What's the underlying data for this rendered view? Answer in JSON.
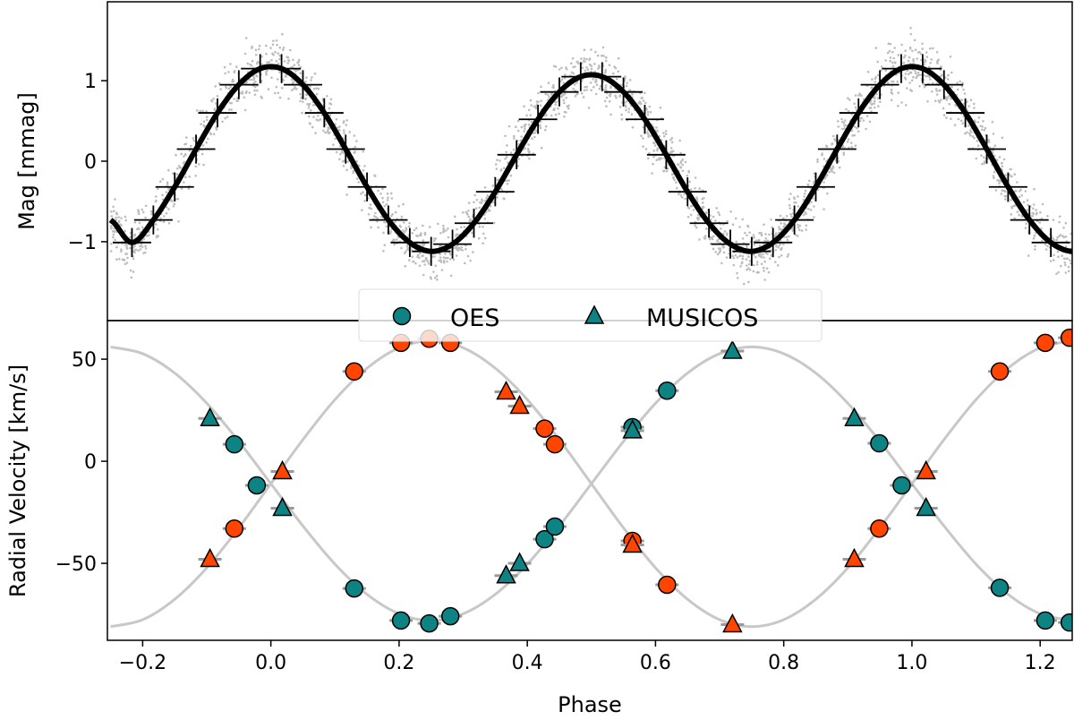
{
  "chart_data": [
    {
      "type": "scatter",
      "panel": "top",
      "xlabel": "",
      "ylabel": "Mag [mmag]",
      "xlim": [
        -0.255,
        1.25
      ],
      "ylim": [
        1.98,
        -1.98
      ],
      "y_inverted": true,
      "yticks": [
        "−1",
        "0",
        "1"
      ],
      "ytick_values": [
        -1,
        0,
        1
      ],
      "grid": false,
      "colors": {
        "raw_points": "#bdbdbd",
        "binned": "#000000",
        "model": "#000000"
      },
      "binned": {
        "phase": [
          -0.2167,
          -0.1833,
          -0.15,
          -0.1167,
          -0.0833,
          -0.05,
          -0.0167,
          0.0167,
          0.05,
          0.0833,
          0.1167,
          0.15,
          0.1833,
          0.2167,
          0.25,
          0.2833,
          0.3167,
          0.35,
          0.3833,
          0.4167,
          0.45,
          0.4833,
          0.5167,
          0.55,
          0.5833,
          0.6167,
          0.65,
          0.6833,
          0.7167,
          0.75,
          0.7833,
          0.8167,
          0.85,
          0.8833,
          0.9167,
          0.95,
          0.9833,
          1.0167,
          1.05,
          1.0833,
          1.1167,
          1.15,
          1.1833,
          1.2167
        ],
        "mag": [
          -1.01,
          -0.73,
          -0.32,
          0.15,
          0.6,
          0.95,
          1.15,
          1.15,
          0.95,
          0.6,
          0.15,
          -0.32,
          -0.73,
          -1.01,
          -1.12,
          -1.03,
          -0.77,
          -0.38,
          0.08,
          0.52,
          0.86,
          1.05,
          1.05,
          0.86,
          0.52,
          0.08,
          -0.38,
          -0.77,
          -1.03,
          -1.12,
          -1.01,
          -0.73,
          -0.32,
          0.15,
          0.6,
          0.95,
          1.15,
          1.15,
          0.95,
          0.6,
          0.15,
          -0.32,
          -0.73,
          -1.01
        ],
        "xerr": 0.03,
        "yerr": 0.18
      }
    },
    {
      "type": "scatter",
      "panel": "bottom",
      "xlabel": "Phase",
      "ylabel": "Radial Velocity [km/s]",
      "xlim": [
        -0.255,
        1.25
      ],
      "ylim": [
        -87.7,
        68.9
      ],
      "xticks": [
        "−0.2",
        "0.0",
        "0.2",
        "0.4",
        "0.6",
        "0.8",
        "1.0",
        "1.2"
      ],
      "xtick_values": [
        -0.2,
        0,
        0.2,
        0.4,
        0.6,
        0.8,
        1.0,
        1.2
      ],
      "yticks": [
        "50",
        "0",
        "−50"
      ],
      "ytick_values": [
        50,
        0,
        -50
      ],
      "grid": false,
      "legend": {
        "placement": "upper-center",
        "entries": [
          {
            "label": "OES",
            "marker": "circle"
          },
          {
            "label": "MUSICOS",
            "marker": "triangle"
          }
        ]
      },
      "colors": {
        "primary": "#0e8383",
        "secondary": "#ff4500",
        "model": "#c8c8c8"
      },
      "model": {
        "phase": [
          -0.25,
          -0.2,
          -0.15,
          -0.1,
          -0.05,
          0,
          0.05,
          0.1,
          0.15,
          0.2,
          0.25,
          0.3,
          0.35,
          0.4,
          0.45,
          0.5,
          0.55,
          0.6,
          0.65,
          0.7,
          0.75,
          0.8,
          0.85,
          0.9,
          0.95,
          1.0,
          1.05,
          1.1,
          1.15,
          1.2,
          1.25
        ],
        "primary": [
          56,
          52.7,
          43.2,
          28.4,
          9.7,
          -11,
          -31.7,
          -50.4,
          -65.2,
          -74.7,
          -78,
          -74.7,
          -65.2,
          -50.4,
          -31.7,
          -11,
          9.7,
          28.4,
          43.2,
          52.7,
          56,
          52.7,
          43.2,
          28.4,
          9.7,
          -11,
          -31.7,
          -50.4,
          -65.2,
          -74.7,
          -78
        ],
        "secondary": [
          -81,
          -77.6,
          -67.6,
          -52.2,
          -32.6,
          -11,
          10.6,
          30.2,
          45.6,
          55.6,
          59,
          55.6,
          45.6,
          30.2,
          10.6,
          -11,
          -32.6,
          -52.2,
          -67.6,
          -77.6,
          -81,
          -77.6,
          -67.6,
          -52.2,
          -32.6,
          -11,
          10.6,
          30.2,
          45.6,
          55.6,
          59
        ]
      },
      "series": [
        {
          "name": "OES",
          "star": "primary",
          "marker": "circle",
          "phase": [
            -0.057,
            -0.022,
            0.13,
            0.203,
            0.247,
            0.28,
            0.427,
            0.443,
            0.564,
            0.618,
            0.949,
            0.984,
            1.137,
            1.208,
            1.246
          ],
          "rv": [
            8.3,
            -11.8,
            -62.3,
            -78,
            -79.4,
            -75.9,
            -38.2,
            -32,
            16.7,
            34.6,
            8.8,
            -11.8,
            -62,
            -78,
            -79
          ]
        },
        {
          "name": "OES",
          "star": "secondary",
          "marker": "circle",
          "phase": [
            -0.057,
            0.13,
            0.203,
            0.247,
            0.28,
            0.427,
            0.443,
            0.564,
            0.618,
            0.949,
            1.137,
            1.208,
            1.246
          ],
          "rv": [
            -33,
            44,
            58,
            60,
            58,
            16,
            8.3,
            -39,
            -60.5,
            -33,
            44,
            58,
            60.5
          ]
        },
        {
          "name": "MUSICOS",
          "star": "primary",
          "marker": "triangle",
          "phase": [
            -0.095,
            0.018,
            0.367,
            0.388,
            0.564,
            0.72,
            0.91,
            1.022
          ],
          "rv": [
            21,
            -23,
            -56,
            -50,
            15,
            54,
            21,
            -23
          ]
        },
        {
          "name": "MUSICOS",
          "star": "secondary",
          "marker": "triangle",
          "phase": [
            -0.095,
            0.018,
            0.367,
            0.388,
            0.564,
            0.72,
            0.91,
            1.022
          ],
          "rv": [
            -48,
            -5,
            34,
            27,
            -41,
            -80,
            -48,
            -5
          ]
        }
      ]
    }
  ]
}
